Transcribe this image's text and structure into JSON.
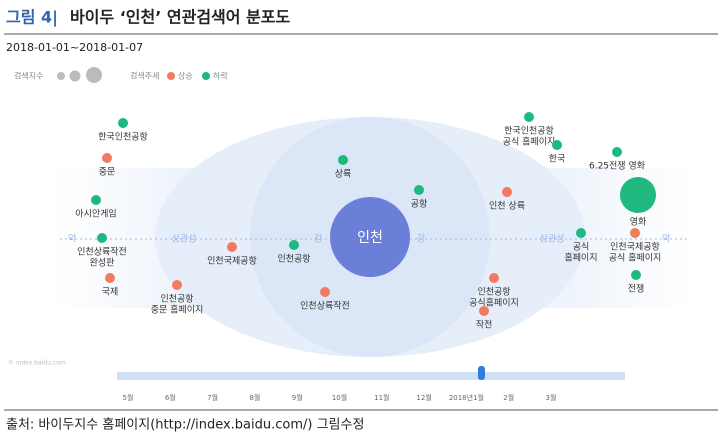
{
  "header": {
    "figure_label": "그림 4|",
    "title": "바이두 ‘인천’ 연관검색어 분포도",
    "date_range": "2018-01-01~2018-01-07"
  },
  "legend": {
    "size_label": "검색지수",
    "trend_label": "검색추세",
    "up": "상승",
    "down": "하락"
  },
  "center": "인천",
  "rings": {
    "weak_left": "약",
    "relevance_left": "상관성",
    "strong_left": "강",
    "strong_right": "강",
    "relevance_right": "상관성",
    "weak_right": "약"
  },
  "nodes": [
    {
      "lines": [
        "한국인천공항"
      ],
      "trend": "down"
    },
    {
      "lines": [
        "중문"
      ],
      "trend": "up"
    },
    {
      "lines": [
        "아시안게임"
      ],
      "trend": "down"
    },
    {
      "lines": [
        "인천상륙작전",
        "완성판"
      ],
      "trend": "down"
    },
    {
      "lines": [
        "국제"
      ],
      "trend": "up"
    },
    {
      "lines": [
        "인천공항",
        "중문 홈페이지"
      ],
      "trend": "up"
    },
    {
      "lines": [
        "인천국제공항"
      ],
      "trend": "up"
    },
    {
      "lines": [
        "인천공항"
      ],
      "trend": "down"
    },
    {
      "lines": [
        "인천상륙작전"
      ],
      "trend": "up"
    },
    {
      "lines": [
        "상륙"
      ],
      "trend": "down"
    },
    {
      "lines": [
        "공항"
      ],
      "trend": "down"
    },
    {
      "lines": [
        "인천 상륙"
      ],
      "trend": "up"
    },
    {
      "lines": [
        "한국인천공항",
        "공식 홈페이지"
      ],
      "trend": "down"
    },
    {
      "lines": [
        "한국"
      ],
      "trend": "down"
    },
    {
      "lines": [
        "6.25전쟁 영화"
      ],
      "trend": "down"
    },
    {
      "lines": [
        "영화"
      ],
      "trend": "down"
    },
    {
      "lines": [
        "공식",
        "홈페이지"
      ],
      "trend": "down"
    },
    {
      "lines": [
        "인천국제공항",
        "공식 홈페이지"
      ],
      "trend": "up"
    },
    {
      "lines": [
        "전쟁"
      ],
      "trend": "down"
    },
    {
      "lines": [
        "인천공항",
        "공식홈페이지"
      ],
      "trend": "up"
    },
    {
      "lines": [
        "작전"
      ],
      "trend": "up"
    }
  ],
  "timeline": {
    "labels": [
      "5월",
      "6월",
      "7월",
      "8월",
      "9월",
      "10월",
      "11월",
      "12월",
      "2018년1월",
      "2월",
      "3월"
    ]
  },
  "watermark": "© index.baidu.com",
  "source": "출처: 바이두지수 홈페이지(http://index.baidu.com/) 그림수정"
}
